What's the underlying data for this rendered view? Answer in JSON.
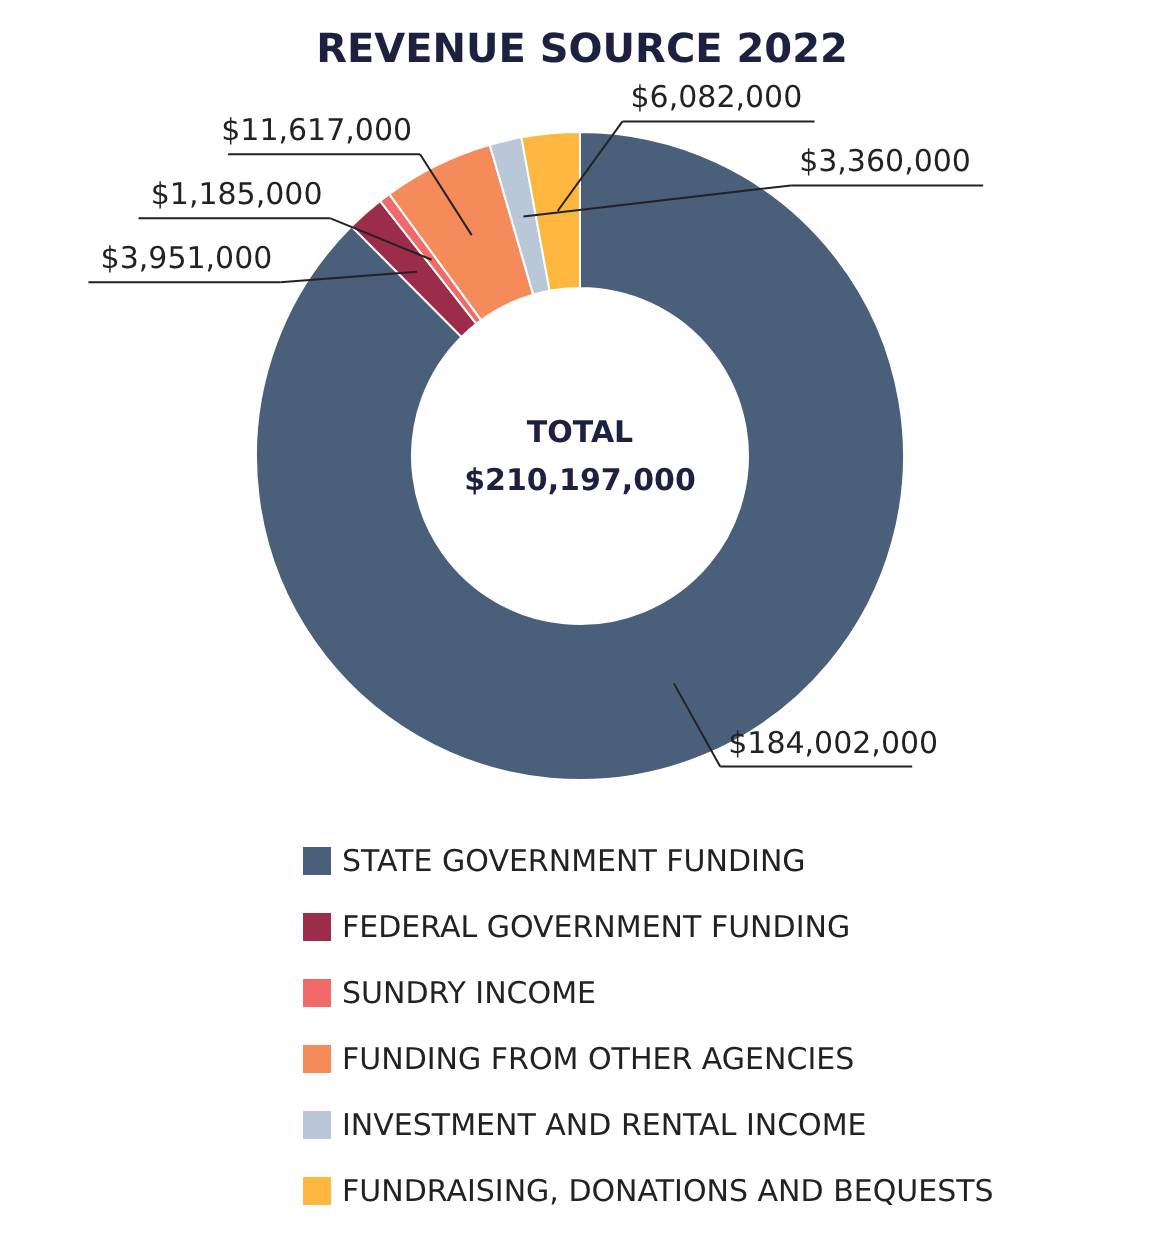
{
  "chart_data": {
    "type": "donut",
    "title": "REVENUE SOURCE 2022",
    "categories": [
      "STATE GOVERNMENT FUNDING",
      "FEDERAL GOVERNMENT FUNDING",
      "SUNDRY INCOME",
      "FUNDING FROM OTHER AGENCIES",
      "INVESTMENT AND RENTAL INCOME",
      "FUNDRAISING, DONATIONS AND BEQUESTS"
    ],
    "values": [
      184002000,
      3951000,
      1185000,
      11617000,
      3360000,
      6082000
    ],
    "value_labels": [
      "$184,002,000",
      "$3,951,000",
      "$1,185,000",
      "$11,617,000",
      "$3,360,000",
      "$6,082,000"
    ],
    "colors": [
      "#4a5f7a",
      "#9b2d4a",
      "#f06a6a",
      "#f58a5a",
      "#b9c7d9",
      "#fdb73e"
    ],
    "annotations": [
      "TOTAL",
      "$210,197,000"
    ],
    "legend": "bottom"
  }
}
